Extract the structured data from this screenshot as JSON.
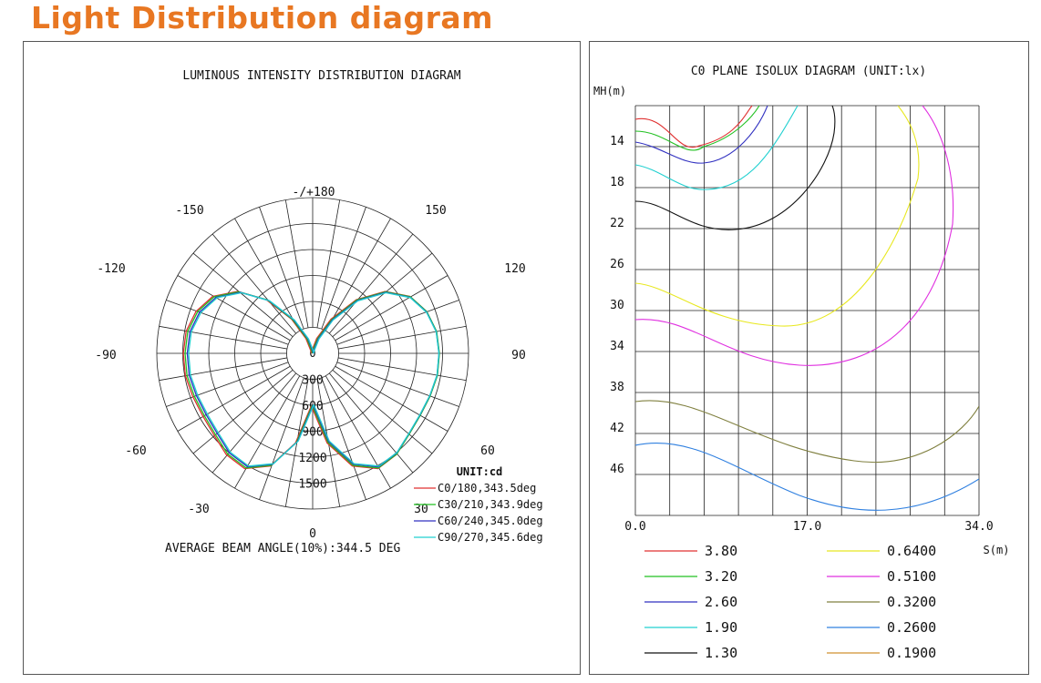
{
  "page": {
    "title": "Light Distribution diagram",
    "title_color": "#e87722"
  },
  "chart_data": [
    {
      "type": "polar",
      "title": "LUMINOUS INTENSITY DISTRIBUTION DIAGRAM",
      "angle_labels": [
        "-/+180",
        "150",
        "120",
        "90",
        "60",
        "30",
        "0",
        "-30",
        "-60",
        "-90",
        "-120",
        "-150"
      ],
      "radial_ticks": [
        300,
        600,
        900,
        1200,
        1500
      ],
      "radial_max": 1800,
      "unit_label": "UNIT:cd",
      "footer": "AVERAGE BEAM ANGLE(10%):344.5 DEG",
      "series": [
        {
          "name": "C0/180,343.5deg",
          "color": "#e03030"
        },
        {
          "name": "C30/210,343.9deg",
          "color": "#20c020"
        },
        {
          "name": "C60/240,345.0deg",
          "color": "#3030c0"
        },
        {
          "name": "C90/270,345.6deg",
          "color": "#20d0d0"
        }
      ],
      "curve": {
        "angles_deg": [
          0,
          10,
          20,
          30,
          40,
          50,
          60,
          70,
          80,
          90,
          100,
          110,
          120,
          130,
          140,
          150,
          160,
          170,
          180
        ],
        "values_cd": [
          600,
          1040,
          1370,
          1520,
          1510,
          1450,
          1430,
          1440,
          1460,
          1460,
          1450,
          1400,
          1300,
          1100,
          800,
          450,
          180,
          30,
          0
        ]
      }
    },
    {
      "type": "contour",
      "title": "C0 PLANE ISOLUX DIAGRAM (UNIT:lx)",
      "ylabel": "MH(m)",
      "xlabel": "S(m)",
      "x_ticks": [
        "0.0",
        "17.0",
        "34.0"
      ],
      "y_ticks": [
        "14",
        "18",
        "22",
        "26",
        "30",
        "34",
        "38",
        "42",
        "46"
      ],
      "legend": [
        {
          "label": "3.80",
          "color": "#e03030"
        },
        {
          "label": "3.20",
          "color": "#20c020"
        },
        {
          "label": "2.60",
          "color": "#3030c0"
        },
        {
          "label": "1.90",
          "color": "#20d0d0"
        },
        {
          "label": "1.30",
          "color": "#111111"
        },
        {
          "label": "0.6400",
          "color": "#e8e820"
        },
        {
          "label": "0.5100",
          "color": "#e030e0"
        },
        {
          "label": "0.3200",
          "color": "#808040"
        },
        {
          "label": "0.2600",
          "color": "#3080e0"
        },
        {
          "label": "0.1900",
          "color": "#d09030"
        }
      ]
    }
  ]
}
